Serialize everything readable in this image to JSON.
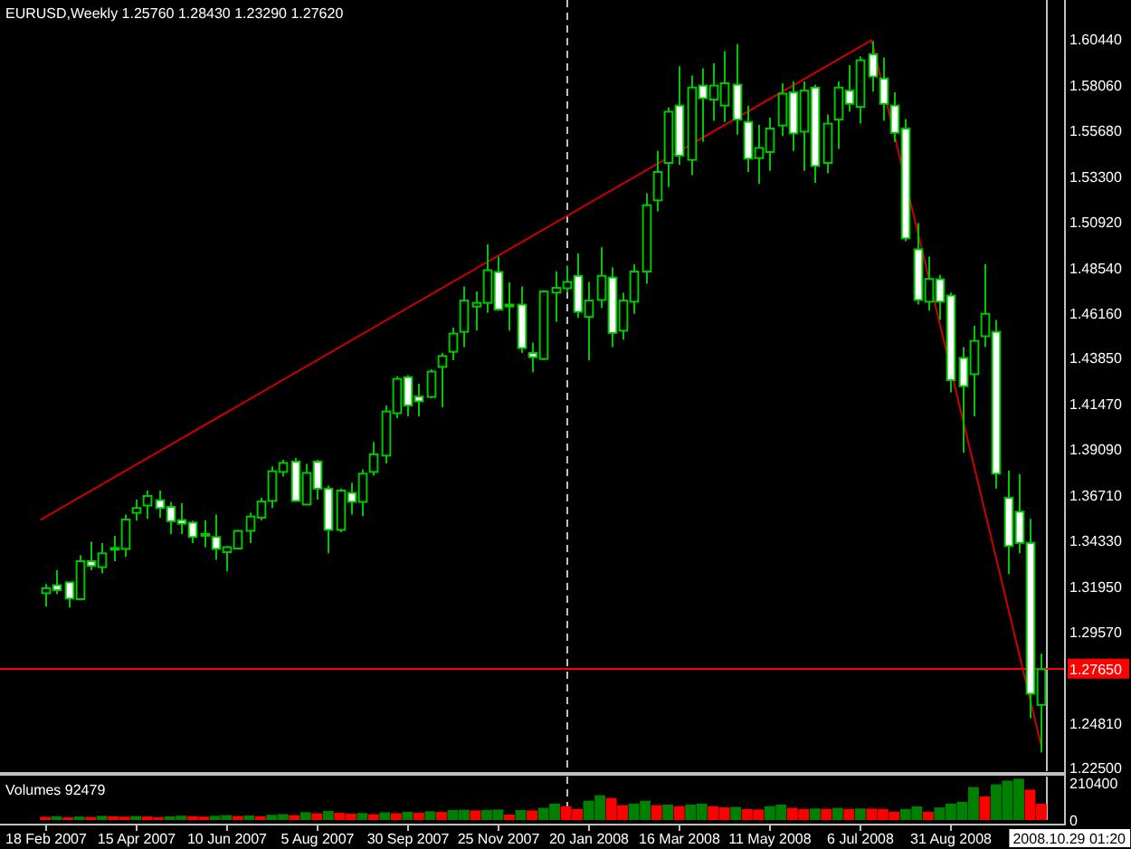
{
  "chart_data": [
    {
      "type": "candlestick",
      "title": "EURUSD,Weekly  1.25760 1.28430 1.23290 1.27620",
      "color": "#00c800",
      "x": [
        "2007-02-18",
        "2007-02-25",
        "2007-03-04",
        "2007-03-11",
        "2007-03-18",
        "2007-03-25",
        "2007-04-01",
        "2007-04-08",
        "2007-04-15",
        "2007-04-22",
        "2007-04-29",
        "2007-05-06",
        "2007-05-13",
        "2007-05-20",
        "2007-05-27",
        "2007-06-03",
        "2007-06-10",
        "2007-06-17",
        "2007-06-24",
        "2007-07-01",
        "2007-07-08",
        "2007-07-15",
        "2007-07-22",
        "2007-07-29",
        "2007-08-05",
        "2007-08-12",
        "2007-08-19",
        "2007-08-26",
        "2007-09-02",
        "2007-09-09",
        "2007-09-16",
        "2007-09-23",
        "2007-09-30",
        "2007-10-07",
        "2007-10-14",
        "2007-10-21",
        "2007-10-28",
        "2007-11-04",
        "2007-11-11",
        "2007-11-18",
        "2007-11-25",
        "2007-12-02",
        "2007-12-09",
        "2007-12-16",
        "2007-12-23",
        "2007-12-30",
        "2008-01-06",
        "2008-01-13",
        "2008-01-20",
        "2008-01-27",
        "2008-02-03",
        "2008-02-10",
        "2008-02-17",
        "2008-02-24",
        "2008-03-02",
        "2008-03-09",
        "2008-03-16",
        "2008-03-23",
        "2008-03-30",
        "2008-04-06",
        "2008-04-13",
        "2008-04-20",
        "2008-04-27",
        "2008-05-04",
        "2008-05-11",
        "2008-05-18",
        "2008-05-25",
        "2008-06-01",
        "2008-06-08",
        "2008-06-15",
        "2008-06-22",
        "2008-06-29",
        "2008-07-06",
        "2008-07-13",
        "2008-07-20",
        "2008-07-27",
        "2008-08-03",
        "2008-08-10",
        "2008-08-17",
        "2008-08-24",
        "2008-08-31",
        "2008-09-07",
        "2008-09-14",
        "2008-09-21",
        "2008-09-28",
        "2008-10-05",
        "2008-10-12",
        "2008-10-19",
        "2008-10-26"
      ],
      "ohlc": [
        [
          1.3158,
          1.3206,
          1.3089,
          1.3184
        ],
        [
          1.32,
          1.3278,
          1.3153,
          1.3174
        ],
        [
          1.3215,
          1.3215,
          1.3083,
          1.313
        ],
        [
          1.3127,
          1.3356,
          1.3121,
          1.3325
        ],
        [
          1.3325,
          1.3426,
          1.3278,
          1.33
        ],
        [
          1.3294,
          1.342,
          1.3262,
          1.3366
        ],
        [
          1.3385,
          1.3457,
          1.3325,
          1.3394
        ],
        [
          1.3389,
          1.3568,
          1.3347,
          1.3542
        ],
        [
          1.3577,
          1.3646,
          1.3536,
          1.3602
        ],
        [
          1.3615,
          1.3693,
          1.3545,
          1.3665
        ],
        [
          1.3643,
          1.3693,
          1.3552,
          1.3602
        ],
        [
          1.3608,
          1.3634,
          1.3467,
          1.3533
        ],
        [
          1.3539,
          1.3627,
          1.3467,
          1.352
        ],
        [
          1.3526,
          1.3536,
          1.342,
          1.3451
        ],
        [
          1.3467,
          1.3539,
          1.3398,
          1.3458
        ],
        [
          1.3451,
          1.3568,
          1.3332,
          1.3389
        ],
        [
          1.3372,
          1.3404,
          1.3272,
          1.3398
        ],
        [
          1.3391,
          1.3488,
          1.3389,
          1.3483
        ],
        [
          1.3483,
          1.3577,
          1.342,
          1.3558
        ],
        [
          1.3552,
          1.3655,
          1.3539,
          1.3636
        ],
        [
          1.3639,
          1.3819,
          1.3602,
          1.3794
        ],
        [
          1.379,
          1.3853,
          1.3766,
          1.3837
        ],
        [
          1.3844,
          1.3863,
          1.3634,
          1.3639
        ],
        [
          1.362,
          1.3832,
          1.3618,
          1.3785
        ],
        [
          1.3844,
          1.3853,
          1.3646,
          1.3703
        ],
        [
          1.3703,
          1.3719,
          1.3366,
          1.3488
        ],
        [
          1.3488,
          1.3703,
          1.3476,
          1.3693
        ],
        [
          1.3681,
          1.3734,
          1.3568,
          1.3634
        ],
        [
          1.3634,
          1.3803,
          1.3561,
          1.3781
        ],
        [
          1.379,
          1.3945,
          1.3771,
          1.3882
        ],
        [
          1.3875,
          1.4136,
          1.3835,
          1.4105
        ],
        [
          1.4096,
          1.429,
          1.407,
          1.4275
        ],
        [
          1.4284,
          1.4294,
          1.408,
          1.4136
        ],
        [
          1.4183,
          1.4249,
          1.408,
          1.4158
        ],
        [
          1.4181,
          1.4325,
          1.4174,
          1.4313
        ],
        [
          1.4337,
          1.441,
          1.4127,
          1.4394
        ],
        [
          1.4416,
          1.4542,
          1.4372,
          1.4511
        ],
        [
          1.452,
          1.4756,
          1.4441,
          1.4683
        ],
        [
          1.4652,
          1.473,
          1.4526,
          1.4671
        ],
        [
          1.4671,
          1.4976,
          1.462,
          1.4841
        ],
        [
          1.4832,
          1.4912,
          1.4629,
          1.4636
        ],
        [
          1.4662,
          1.4778,
          1.4526,
          1.4652
        ],
        [
          1.4662,
          1.4756,
          1.441,
          1.4435
        ],
        [
          1.441,
          1.4464,
          1.4309,
          1.4388
        ],
        [
          1.4379,
          1.4737,
          1.4372,
          1.473
        ],
        [
          1.4724,
          1.4834,
          1.4573,
          1.4749
        ],
        [
          1.4747,
          1.4865,
          1.4724,
          1.478
        ],
        [
          1.4812,
          1.4928,
          1.4592,
          1.4624
        ],
        [
          1.4598,
          1.478,
          1.4372,
          1.4683
        ],
        [
          1.4686,
          1.496,
          1.4646,
          1.4812
        ],
        [
          1.4803,
          1.4856,
          1.4441,
          1.4514
        ],
        [
          1.4526,
          1.4724,
          1.4479,
          1.4683
        ],
        [
          1.4677,
          1.4872,
          1.4614,
          1.4834
        ],
        [
          1.4834,
          1.5242,
          1.4771,
          1.518
        ],
        [
          1.5205,
          1.5463,
          1.5148,
          1.5353
        ],
        [
          1.54,
          1.5689,
          1.5275,
          1.5667
        ],
        [
          1.5699,
          1.5903,
          1.539,
          1.5438
        ],
        [
          1.5416,
          1.5855,
          1.5337,
          1.5793
        ],
        [
          1.5803,
          1.5893,
          1.551,
          1.5737
        ],
        [
          1.573,
          1.5919,
          1.562,
          1.5803
        ],
        [
          1.5699,
          1.5982,
          1.5614,
          1.5815
        ],
        [
          1.5808,
          1.6019,
          1.5548,
          1.5626
        ],
        [
          1.5614,
          1.5699,
          1.5353,
          1.5422
        ],
        [
          1.5425,
          1.5598,
          1.529,
          1.5478
        ],
        [
          1.5457,
          1.5636,
          1.5359,
          1.5579
        ],
        [
          1.5595,
          1.5815,
          1.5541,
          1.5761
        ],
        [
          1.5768,
          1.5824,
          1.5463,
          1.5554
        ],
        [
          1.5563,
          1.5824,
          1.5359,
          1.5777
        ],
        [
          1.5793,
          1.5808,
          1.5296,
          1.5384
        ],
        [
          1.54,
          1.5652,
          1.5346,
          1.5605
        ],
        [
          1.5626,
          1.5824,
          1.5473,
          1.5793
        ],
        [
          1.5777,
          1.5909,
          1.5667,
          1.5708
        ],
        [
          1.5692,
          1.5956,
          1.5605,
          1.5935
        ],
        [
          1.5966,
          1.6035,
          1.5771,
          1.585
        ],
        [
          1.584,
          1.595,
          1.562,
          1.5708
        ],
        [
          1.5699,
          1.5768,
          1.551,
          1.5557
        ],
        [
          1.5579,
          1.5629,
          1.4992,
          1.5007
        ],
        [
          1.495,
          1.5086,
          1.4662,
          1.4686
        ],
        [
          1.4677,
          1.4912,
          1.463,
          1.4796
        ],
        [
          1.4794,
          1.4818,
          1.4582,
          1.4677
        ],
        [
          1.4709,
          1.4724,
          1.4205,
          1.4268
        ],
        [
          1.4384,
          1.4441,
          1.3891,
          1.4237
        ],
        [
          1.4299,
          1.4551,
          1.408,
          1.4473
        ],
        [
          1.4497,
          1.4872,
          1.4441,
          1.4614
        ],
        [
          1.452,
          1.4582,
          1.3703,
          1.3781
        ],
        [
          1.3655,
          1.3797,
          1.3259,
          1.3404
        ],
        [
          1.3583,
          1.3778,
          1.3366,
          1.342
        ],
        [
          1.342,
          1.3545,
          1.2508,
          1.2634
        ],
        [
          1.2576,
          1.2843,
          1.2329,
          1.2762
        ]
      ],
      "series": [
        {
          "type": "line",
          "color": "#cc0000",
          "x": [
            "2007-02-15",
            "2008-07-13",
            "2008-10-26"
          ],
          "values": [
            1.354,
            1.604,
            1.236
          ]
        }
      ],
      "xlim": [
        "2007-01-21",
        "2008-11-09"
      ],
      "ylim": [
        1.2231,
        1.6249
      ],
      "yticks": [
        {
          "value": 1.6044,
          "label": "1.60440"
        },
        {
          "value": 1.5806,
          "label": "1.58060"
        },
        {
          "value": 1.5568,
          "label": "1.55680"
        },
        {
          "value": 1.533,
          "label": "1.53300"
        },
        {
          "value": 1.5092,
          "label": "1.50920"
        },
        {
          "value": 1.4854,
          "label": "1.48540"
        },
        {
          "value": 1.4616,
          "label": "1.46160"
        },
        {
          "value": 1.4385,
          "label": "1.43850"
        },
        {
          "value": 1.4147,
          "label": "1.41470"
        },
        {
          "value": 1.3909,
          "label": "1.39090"
        },
        {
          "value": 1.3671,
          "label": "1.36710"
        },
        {
          "value": 1.3433,
          "label": "1.34330"
        },
        {
          "value": 1.3195,
          "label": "1.31950"
        },
        {
          "value": 1.2957,
          "label": "1.29570"
        },
        {
          "value": 1.2481,
          "label": "1.24810"
        },
        {
          "value": 1.225,
          "label": "1.22500"
        }
      ],
      "tick_labels": "y",
      "ref_lines": [
        {
          "axis": "x",
          "value": "2008-01-06",
          "color": "#c0c0c0",
          "line_style": "dashed"
        },
        {
          "axis": "x",
          "value": "2008-10-29T01:20",
          "color": "#c0c0c0"
        },
        {
          "axis": "y",
          "value": 1.2765,
          "label": "1.27650",
          "color": "#ff0000"
        }
      ]
    },
    {
      "type": "bar",
      "title": "Volumes 92479",
      "x": [
        "2007-02-18",
        "2007-02-25",
        "2007-03-04",
        "2007-03-11",
        "2007-03-18",
        "2007-03-25",
        "2007-04-01",
        "2007-04-08",
        "2007-04-15",
        "2007-04-22",
        "2007-04-29",
        "2007-05-06",
        "2007-05-13",
        "2007-05-20",
        "2007-05-27",
        "2007-06-03",
        "2007-06-10",
        "2007-06-17",
        "2007-06-24",
        "2007-07-01",
        "2007-07-08",
        "2007-07-15",
        "2007-07-22",
        "2007-07-29",
        "2007-08-05",
        "2007-08-12",
        "2007-08-19",
        "2007-08-26",
        "2007-09-02",
        "2007-09-09",
        "2007-09-16",
        "2007-09-23",
        "2007-09-30",
        "2007-10-07",
        "2007-10-14",
        "2007-10-21",
        "2007-10-28",
        "2007-11-04",
        "2007-11-11",
        "2007-11-18",
        "2007-11-25",
        "2007-12-02",
        "2007-12-09",
        "2007-12-16",
        "2007-12-23",
        "2007-12-30",
        "2008-01-06",
        "2008-01-13",
        "2008-01-20",
        "2008-01-27",
        "2008-02-03",
        "2008-02-10",
        "2008-02-17",
        "2008-02-24",
        "2008-03-02",
        "2008-03-09",
        "2008-03-16",
        "2008-03-23",
        "2008-03-30",
        "2008-04-06",
        "2008-04-13",
        "2008-04-20",
        "2008-04-27",
        "2008-05-04",
        "2008-05-11",
        "2008-05-18",
        "2008-05-25",
        "2008-06-01",
        "2008-06-08",
        "2008-06-15",
        "2008-06-22",
        "2008-06-29",
        "2008-07-06",
        "2008-07-13",
        "2008-07-20",
        "2008-07-27",
        "2008-08-03",
        "2008-08-10",
        "2008-08-17",
        "2008-08-24",
        "2008-08-31",
        "2008-09-07",
        "2008-09-14",
        "2008-09-21",
        "2008-09-28",
        "2008-10-05",
        "2008-10-12",
        "2008-10-19",
        "2008-10-26"
      ],
      "values": [
        18000,
        22000,
        15000,
        20000,
        17000,
        24000,
        21000,
        19000,
        23000,
        20000,
        16000,
        21000,
        25000,
        22000,
        19000,
        24000,
        28000,
        23000,
        26000,
        21000,
        30000,
        34000,
        27000,
        45000,
        38000,
        52000,
        41000,
        36000,
        40000,
        33000,
        44000,
        38000,
        47000,
        42000,
        50000,
        46000,
        57000,
        59000,
        55000,
        58000,
        60000,
        31000,
        57000,
        55000,
        69000,
        94000,
        79000,
        63000,
        110000,
        141000,
        126000,
        85000,
        94000,
        110000,
        85000,
        88000,
        79000,
        88000,
        94000,
        79000,
        72000,
        75000,
        63000,
        60000,
        79000,
        88000,
        69000,
        63000,
        66000,
        64000,
        69000,
        63000,
        66000,
        65000,
        63000,
        47000,
        63000,
        78000,
        47000,
        72000,
        94000,
        104000,
        188000,
        135000,
        204000,
        225000,
        236000,
        173000,
        92479
      ],
      "colors": [
        "#ff0000",
        "#008000",
        "#ff0000",
        "#008000",
        "#ff0000",
        "#008000",
        "#ff0000",
        "#ff0000",
        "#008000",
        "#ff0000",
        "#ff0000",
        "#008000",
        "#008000",
        "#ff0000",
        "#ff0000",
        "#008000",
        "#008000",
        "#ff0000",
        "#008000",
        "#ff0000",
        "#008000",
        "#008000",
        "#ff0000",
        "#008000",
        "#ff0000",
        "#008000",
        "#ff0000",
        "#ff0000",
        "#008000",
        "#ff0000",
        "#008000",
        "#ff0000",
        "#008000",
        "#ff0000",
        "#008000",
        "#ff0000",
        "#008000",
        "#008000",
        "#ff0000",
        "#008000",
        "#008000",
        "#ff0000",
        "#008000",
        "#ff0000",
        "#008000",
        "#008000",
        "#ff0000",
        "#ff0000",
        "#008000",
        "#008000",
        "#ff0000",
        "#ff0000",
        "#008000",
        "#008000",
        "#ff0000",
        "#008000",
        "#ff0000",
        "#008000",
        "#008000",
        "#ff0000",
        "#ff0000",
        "#008000",
        "#ff0000",
        "#ff0000",
        "#008000",
        "#008000",
        "#ff0000",
        "#ff0000",
        "#008000",
        "#ff0000",
        "#008000",
        "#ff0000",
        "#008000",
        "#ff0000",
        "#ff0000",
        "#ff0000",
        "#008000",
        "#008000",
        "#ff0000",
        "#008000",
        "#008000",
        "#008000",
        "#008000",
        "#ff0000",
        "#008000",
        "#008000",
        "#008000",
        "#ff0000",
        "#ff0000"
      ],
      "xlim": [
        "2007-01-21",
        "2008-11-09"
      ],
      "ylim": [
        0,
        248000
      ],
      "yticks": [
        210400,
        0
      ],
      "xticks": [
        {
          "value": "2007-02-18",
          "label": "18 Feb 2007"
        },
        {
          "value": "2007-04-15",
          "label": "15 Apr 2007"
        },
        {
          "value": "2007-06-10",
          "label": "10 Jun 2007"
        },
        {
          "value": "2007-08-05",
          "label": "5 Aug 2007"
        },
        {
          "value": "2007-09-30",
          "label": "30 Sep 2007"
        },
        {
          "value": "2007-11-25",
          "label": "25 Nov 2007"
        },
        {
          "value": "2008-01-20",
          "label": "20 Jan 2008"
        },
        {
          "value": "2008-03-16",
          "label": "16 Mar 2008"
        },
        {
          "value": "2008-05-11",
          "label": "11 May 2008"
        },
        {
          "value": "2008-07-06",
          "label": "6 Jul 2008"
        },
        {
          "value": "2008-08-31",
          "label": "31 Aug 2008"
        }
      ],
      "ref_lines": [
        {
          "axis": "x",
          "value": "2008-01-06",
          "color": "#c0c0c0",
          "line_style": "dashed"
        },
        {
          "axis": "x",
          "value": "2008-10-29T01:20",
          "label": "2008.10.29 01:20",
          "color": "#c0c0c0"
        }
      ]
    }
  ]
}
